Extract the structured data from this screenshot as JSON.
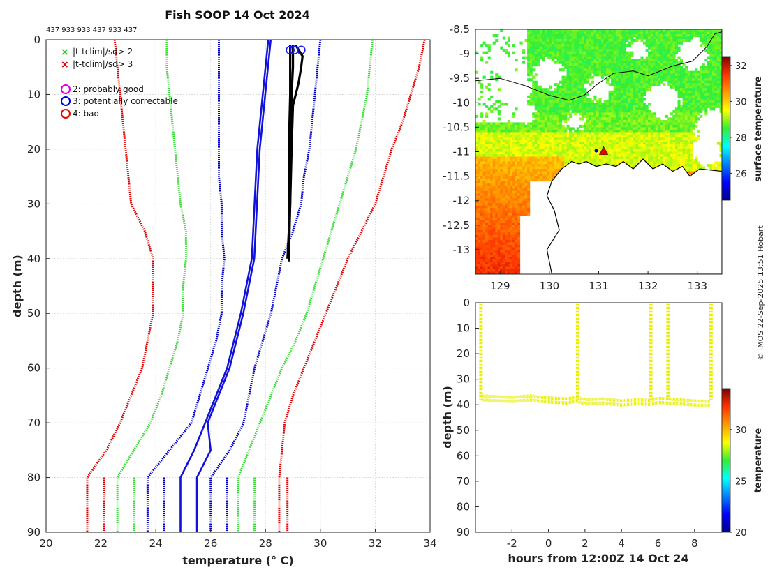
{
  "colors": {
    "clim_red": "#e00000",
    "clim_green": "#33dd33",
    "clim_blue": "#0000cc",
    "profile": "#000000",
    "mean_line": "#1111dd",
    "land": "#ffffff",
    "coast": "#000000",
    "track": "#e8f000"
  },
  "chart_data": [
    {
      "id": "profile",
      "type": "line",
      "title": "Fish SOOP 14 Oct 2024",
      "header_ids": "437 933 933 437 933 437",
      "xlabel": "temperature (° C)",
      "ylabel": "depth (m)",
      "xlim": [
        20,
        34
      ],
      "ylim": [
        90,
        0
      ],
      "xticks": [
        "20",
        "22",
        "24",
        "26",
        "28",
        "30",
        "32",
        "34"
      ],
      "yticks": [
        "0",
        "10",
        "20",
        "30",
        "40",
        "50",
        "60",
        "70",
        "80",
        "90"
      ],
      "grid": true,
      "depths": [
        0,
        5,
        10,
        15,
        20,
        25,
        30,
        35,
        40,
        45,
        50,
        55,
        60,
        65,
        70,
        75,
        80,
        90
      ],
      "climatology_series": [
        {
          "name": "mean - 3sd",
          "color": "red",
          "values": [
            22.5,
            22.6,
            22.7,
            22.8,
            22.9,
            23.0,
            23.1,
            23.6,
            23.9,
            23.9,
            23.9,
            23.7,
            23.5,
            23.1,
            22.7,
            22.2,
            21.5,
            21.5
          ],
          "left_tail": 22.1
        },
        {
          "name": "mean - 2sd",
          "color": "green",
          "values": [
            24.4,
            24.4,
            24.5,
            24.6,
            24.7,
            24.8,
            24.9,
            25.1,
            25.1,
            25.0,
            25.0,
            24.8,
            24.5,
            24.2,
            23.8,
            23.2,
            22.6,
            22.6
          ],
          "left_tail": 23.2
        },
        {
          "name": "mean - 1sd",
          "color": "blue",
          "values": [
            26.3,
            26.3,
            26.3,
            26.3,
            26.3,
            26.3,
            26.4,
            26.4,
            26.5,
            26.4,
            26.4,
            26.2,
            25.9,
            25.6,
            25.3,
            24.5,
            23.7,
            23.7
          ],
          "left_tail": 24.3
        },
        {
          "name": "mean + 1sd",
          "color": "blue",
          "values": [
            30.0,
            29.9,
            29.8,
            29.7,
            29.6,
            29.4,
            29.3,
            29.0,
            28.6,
            28.4,
            28.2,
            27.9,
            27.6,
            27.4,
            27.2,
            26.7,
            26.0,
            26.0
          ],
          "left_tail": 26.6
        },
        {
          "name": "mean + 2sd",
          "color": "green",
          "values": [
            31.9,
            31.8,
            31.7,
            31.5,
            31.3,
            31.0,
            30.7,
            30.4,
            30.1,
            29.8,
            29.5,
            29.1,
            28.6,
            28.2,
            27.8,
            27.4,
            27.0,
            27.0
          ],
          "left_tail": 27.6
        },
        {
          "name": "mean + 3sd",
          "color": "red",
          "values": [
            33.8,
            33.6,
            33.3,
            33.0,
            32.6,
            32.3,
            32.0,
            31.5,
            31.0,
            30.6,
            30.2,
            29.8,
            29.4,
            29.0,
            28.7,
            28.6,
            28.5,
            28.5
          ],
          "left_tail": 28.8
        }
      ],
      "mean_series": {
        "name": "climatology mean",
        "depths": [
          0,
          5,
          10,
          20,
          40,
          50,
          60,
          70,
          75,
          80,
          90
        ],
        "values": [
          28.1,
          28.0,
          27.9,
          27.7,
          27.5,
          27.1,
          26.6,
          25.8,
          25.4,
          24.9,
          24.9
        ],
        "offset": 0.6
      },
      "profiles": [
        {
          "depths": [
            1,
            5,
            10,
            20,
            30,
            40.5
          ],
          "values": [
            28.9,
            28.9,
            28.9,
            28.85,
            28.85,
            28.85
          ]
        },
        {
          "depths": [
            1,
            5,
            10,
            20,
            30,
            40
          ],
          "values": [
            29.0,
            29.0,
            28.95,
            28.9,
            28.9,
            28.85
          ]
        },
        {
          "depths": [
            1,
            3,
            5,
            8,
            12,
            20,
            30,
            40
          ],
          "values": [
            29.1,
            29.35,
            29.3,
            29.2,
            29.0,
            28.95,
            28.9,
            28.8
          ]
        }
      ],
      "flag_markers": [
        {
          "depth": 1,
          "temp": 28.9,
          "flag": "3"
        },
        {
          "depth": 1,
          "temp": 29.05,
          "flag": "3"
        },
        {
          "depth": 1,
          "temp": 29.3,
          "flag": "3"
        }
      ],
      "legend": [
        {
          "symbol": "x",
          "color": "#22cc22",
          "label": "|t-tclim|/sd> 2"
        },
        {
          "symbol": "x",
          "color": "#dd0000",
          "label": "|t-tclim|/sd> 3"
        },
        {
          "symbol": "o",
          "color": "#dd00dd",
          "label": "2: probably good"
        },
        {
          "symbol": "o",
          "color": "#0000dd",
          "label": "3: potentially correctable"
        },
        {
          "symbol": "o",
          "color": "#ee0000",
          "label": "4: bad"
        }
      ]
    },
    {
      "id": "map",
      "type": "heatmap",
      "xlim": [
        128.5,
        133.5
      ],
      "ylim": [
        -13.5,
        -8.5
      ],
      "xticks": [
        "129",
        "130",
        "131",
        "132",
        "133"
      ],
      "yticks": [
        "-8.5",
        "-9",
        "-9.5",
        "-10",
        "-10.5",
        "-11",
        "-11.5",
        "-12",
        "-12.5",
        "-13"
      ],
      "colorbar_label": "surface temperature",
      "colorbar_range": [
        24.5,
        32.5
      ],
      "colorbar_ticks": [
        "26",
        "28",
        "30",
        "32"
      ],
      "markers": [
        {
          "lon": 131.1,
          "lat": -11.0,
          "kind": "triangle",
          "color": "#ee0000"
        },
        {
          "lon": 130.95,
          "lat": -10.98,
          "kind": "dot",
          "color": "#0000cc"
        }
      ]
    },
    {
      "id": "timeseries",
      "type": "scatter",
      "xlabel": "hours from 12:00Z 14 Oct 24",
      "ylabel": "depth (m)",
      "xlim": [
        -4,
        9.5
      ],
      "ylim": [
        90,
        0
      ],
      "xticks": [
        "-2",
        "0",
        "2",
        "4",
        "6",
        "8"
      ],
      "yticks": [
        "0",
        "10",
        "20",
        "30",
        "40",
        "50",
        "60",
        "70",
        "80",
        "90"
      ],
      "colorbar_label": "temperature",
      "colorbar_range": [
        20,
        34
      ],
      "colorbar_ticks": [
        "20",
        "25",
        "30"
      ],
      "casts": [
        {
          "start": -3.7,
          "end": 1.55,
          "start_depth": 36,
          "end_depth": 37.5
        },
        {
          "start": 1.6,
          "end": 5.5,
          "start_depth": 38.5,
          "end_depth": 39.5
        },
        {
          "start": 5.6,
          "end": 6.45,
          "start_depth": 39,
          "end_depth": 39
        },
        {
          "start": 6.6,
          "end": 8.85,
          "start_depth": 38.5,
          "end_depth": 39.5
        }
      ],
      "bottom_track": {
        "hours": [
          -3.6,
          -3.0,
          -2.0,
          -1.0,
          -0.5,
          0,
          1,
          1.55,
          2,
          3,
          4,
          5,
          5.5,
          6,
          6.5,
          7,
          8,
          8.85
        ],
        "depths": [
          38,
          38.3,
          38.6,
          38.0,
          38.5,
          38.8,
          39.2,
          38.5,
          39.5,
          39.2,
          40.0,
          39.5,
          39.8,
          39.0,
          39.2,
          39.5,
          40.0,
          40.2
        ]
      }
    }
  ],
  "credit": "© IMOS 22-Sep-2025 13:51 Hobart"
}
